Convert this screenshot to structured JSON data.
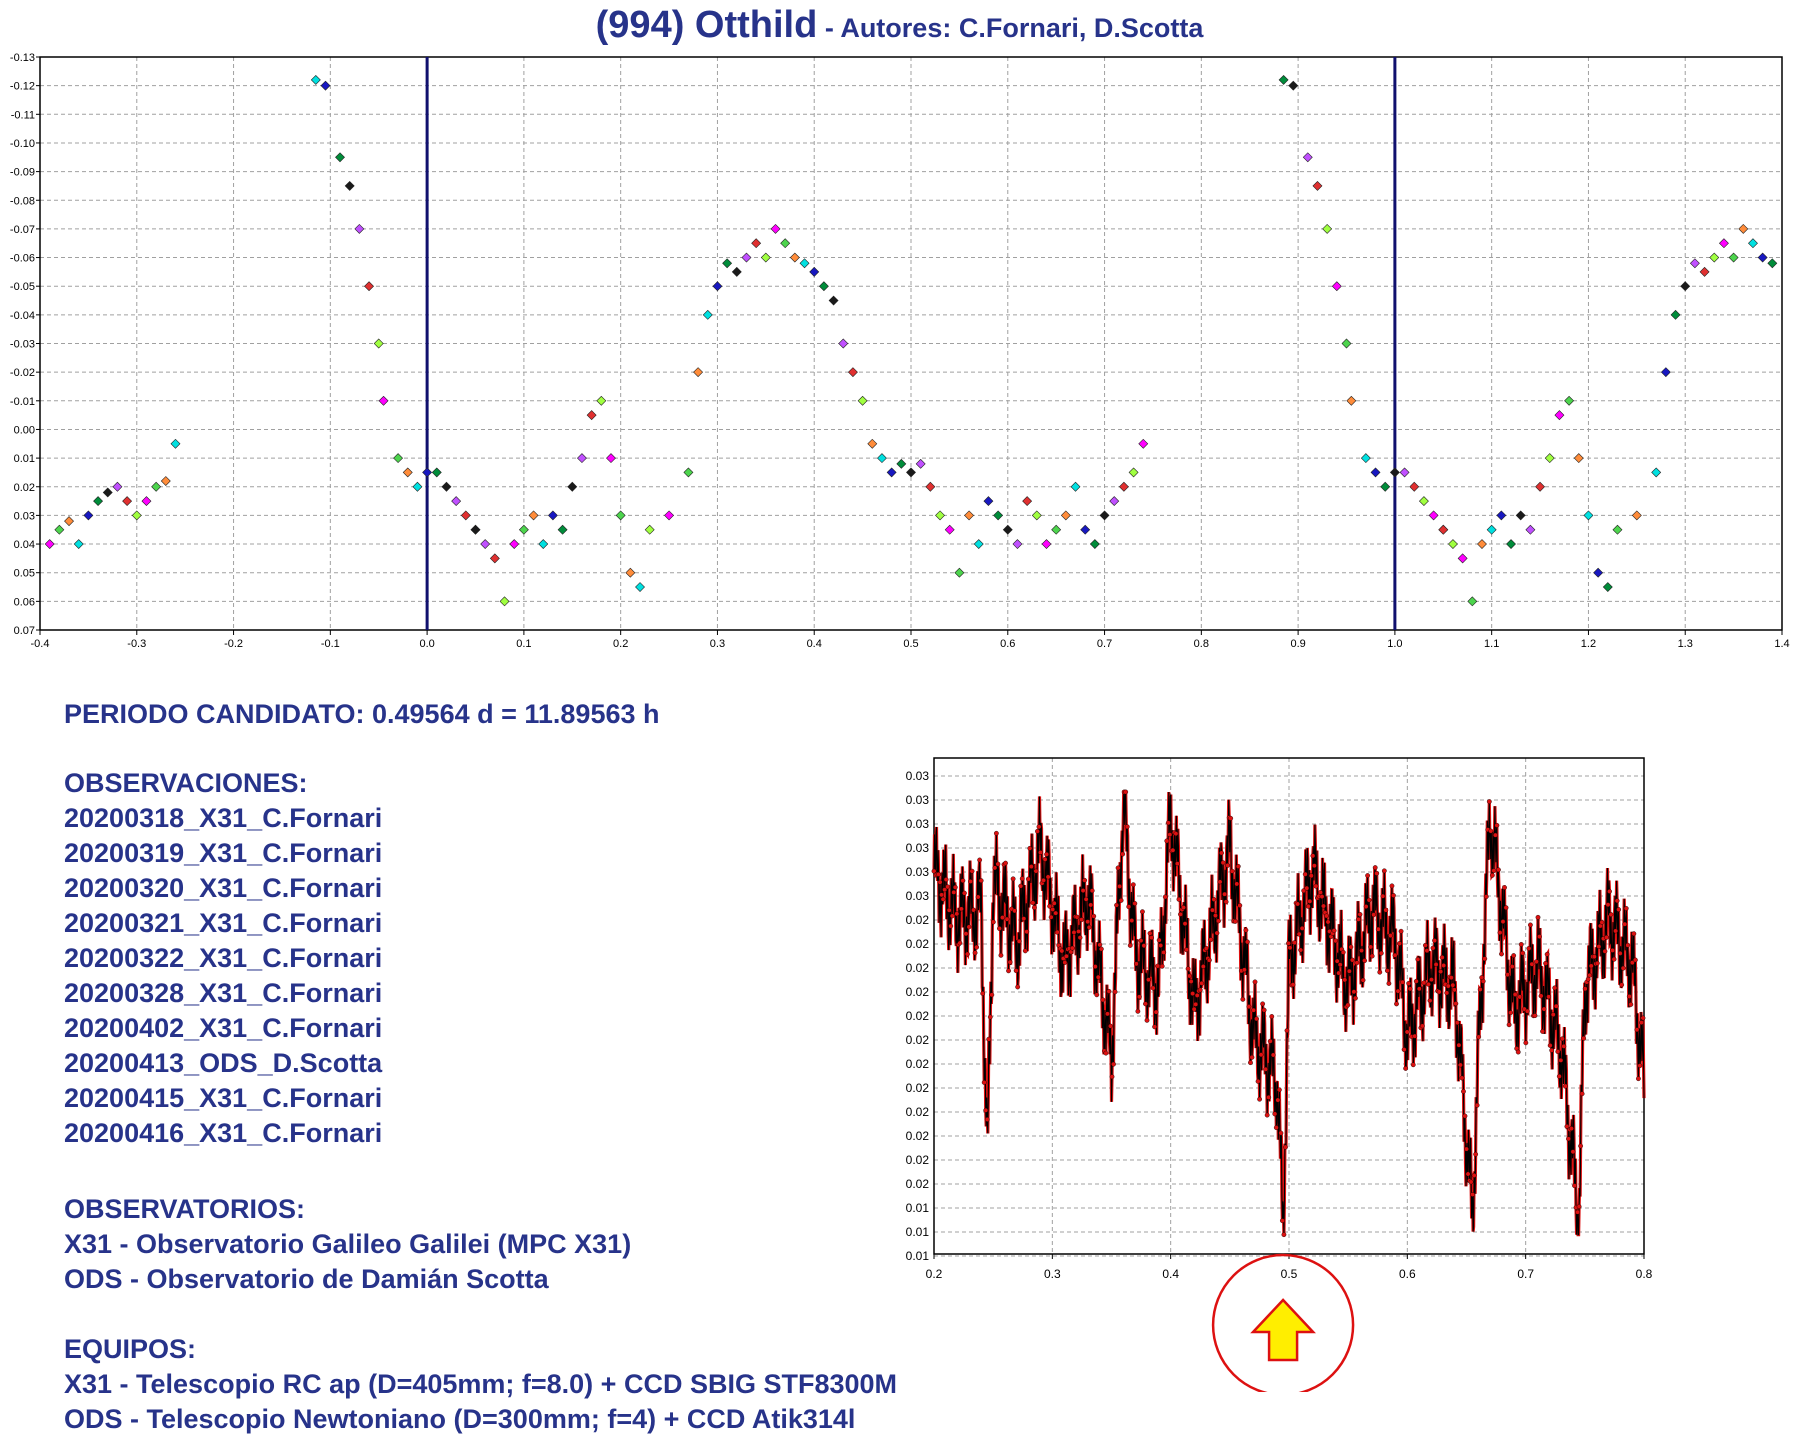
{
  "title": {
    "object": "(994) Otthild",
    "authors": " - Autores: C.Fornari, D.Scotta"
  },
  "period": "PERIODO CANDIDATO: 0.49564 d = 11.89563 h",
  "observaciones": {
    "heading": "OBSERVACIONES:",
    "items": [
      "20200318_X31_C.Fornari",
      "20200319_X31_C.Fornari",
      "20200320_X31_C.Fornari",
      "20200321_X31_C.Fornari",
      "20200322_X31_C.Fornari",
      "20200328_X31_C.Fornari",
      "20200402_X31_C.Fornari",
      "20200413_ODS_D.Scotta",
      "20200415_X31_C.Fornari",
      "20200416_X31_C.Fornari"
    ]
  },
  "observatorios": {
    "heading": "OBSERVATORIOS:",
    "items": [
      "X31 - Observatorio Galileo Galilei (MPC X31)",
      "ODS - Observatorio de Damián Scotta"
    ]
  },
  "equipos": {
    "heading": "EQUIPOS:",
    "items": [
      "X31 - Telescopio RC ap (D=405mm; f=8.0) + CCD SBIG STF8300M",
      "ODS - Telescopio Newtoniano (D=300mm; f=4) + CCD Atik314l"
    ]
  },
  "chart_data": [
    {
      "type": "scatter",
      "title": "",
      "xlabel": "",
      "ylabel": "",
      "xlim": [
        -0.4,
        1.4
      ],
      "ylim": [
        -0.13,
        0.07
      ],
      "y_inverted": true,
      "grid": true,
      "x_ticks": [
        -0.4,
        -0.3,
        -0.2,
        -0.1,
        0.0,
        0.1,
        0.2,
        0.3,
        0.4,
        0.5,
        0.6,
        0.7,
        0.8,
        0.9,
        1.0,
        1.1,
        1.2,
        1.3,
        1.4
      ],
      "x_tick_labels": [
        "-0.4",
        "-0.3",
        "-0.2",
        "-0.1",
        "0.0",
        "0.1",
        "0.2",
        "0.3",
        "0.4",
        "0.5",
        "0.6",
        "0.7",
        "0.8",
        "0.9",
        "1.0",
        "1.1",
        "1.2",
        "1.3",
        "1.4"
      ],
      "y_ticks": [
        -0.13,
        -0.12,
        -0.11,
        -0.1,
        -0.09,
        -0.08,
        -0.07,
        -0.06,
        -0.05,
        -0.04,
        -0.03,
        -0.02,
        -0.01,
        0.0,
        0.01,
        0.02,
        0.03,
        0.04,
        0.05,
        0.06,
        0.07
      ],
      "y_tick_labels": [
        "-0.13",
        "-0.12",
        "-0.11",
        "-0.10",
        "-0.09",
        "-0.08",
        "-0.07",
        "-0.06",
        "-0.05",
        "-0.04",
        "-0.03",
        "-0.02",
        "-0.01",
        "0.00",
        "0.01",
        "0.02",
        "0.03",
        "0.04",
        "0.05",
        "0.06",
        "0.07"
      ],
      "vertical_lines": [
        0.0,
        1.0
      ],
      "vertical_line_color": "#10106e",
      "series_colors": [
        "#ff00ff",
        "#4dd44d",
        "#ff8c3a",
        "#00e0e0",
        "#1818c0",
        "#008c3a",
        "#1a1a1a",
        "#c050ff",
        "#e03030",
        "#a0ff40"
      ],
      "series": [
        {
          "x": [
            -0.39,
            -0.38,
            -0.37,
            -0.36,
            -0.35,
            -0.34,
            -0.33,
            -0.32,
            -0.31,
            -0.3,
            -0.29,
            -0.28,
            -0.27,
            -0.26
          ],
          "y": [
            0.04,
            0.035,
            0.032,
            0.04,
            0.03,
            0.025,
            0.022,
            0.02,
            0.025,
            0.03,
            0.025,
            0.02,
            0.018,
            0.005
          ]
        },
        {
          "x": [
            -0.115,
            -0.105,
            -0.09,
            -0.08,
            -0.07,
            -0.06,
            -0.05,
            -0.045,
            -0.03,
            -0.02,
            -0.01,
            0.0,
            0.01,
            0.02,
            0.03,
            0.04,
            0.05
          ],
          "y": [
            -0.122,
            -0.12,
            -0.095,
            -0.085,
            -0.07,
            -0.05,
            -0.03,
            -0.01,
            0.01,
            0.015,
            0.02,
            0.015,
            0.015,
            0.02,
            0.025,
            0.03,
            0.035
          ]
        },
        {
          "x": [
            0.05,
            0.06,
            0.07,
            0.08,
            0.09,
            0.1,
            0.11,
            0.12,
            0.13,
            0.14,
            0.15,
            0.16,
            0.17,
            0.18,
            0.19,
            0.2,
            0.21,
            0.22
          ],
          "y": [
            0.035,
            0.04,
            0.045,
            0.06,
            0.04,
            0.035,
            0.03,
            0.04,
            0.03,
            0.035,
            0.02,
            0.01,
            -0.005,
            -0.01,
            0.01,
            0.03,
            0.05,
            0.055
          ]
        },
        {
          "x": [
            0.23,
            0.25,
            0.27,
            0.28,
            0.29,
            0.3,
            0.31,
            0.32,
            0.33,
            0.34,
            0.35,
            0.36,
            0.37,
            0.38,
            0.39,
            0.4,
            0.41,
            0.42,
            0.43,
            0.44,
            0.45
          ],
          "y": [
            0.035,
            0.03,
            0.015,
            -0.02,
            -0.04,
            -0.05,
            -0.058,
            -0.055,
            -0.06,
            -0.065,
            -0.06,
            -0.07,
            -0.065,
            -0.06,
            -0.058,
            -0.055,
            -0.05,
            -0.045,
            -0.03,
            -0.02,
            -0.01
          ]
        },
        {
          "x": [
            0.46,
            0.47,
            0.48,
            0.49,
            0.5,
            0.51,
            0.52,
            0.53,
            0.54,
            0.55,
            0.56,
            0.57,
            0.58,
            0.59,
            0.6,
            0.61,
            0.62,
            0.63,
            0.64,
            0.65,
            0.66,
            0.67,
            0.68,
            0.69,
            0.7,
            0.71,
            0.72,
            0.73,
            0.74
          ],
          "y": [
            0.005,
            0.01,
            0.015,
            0.012,
            0.015,
            0.012,
            0.02,
            0.03,
            0.035,
            0.05,
            0.03,
            0.04,
            0.025,
            0.03,
            0.035,
            0.04,
            0.025,
            0.03,
            0.04,
            0.035,
            0.03,
            0.02,
            0.035,
            0.04,
            0.03,
            0.025,
            0.02,
            0.015,
            0.005
          ]
        },
        {
          "x": [
            0.885,
            0.895,
            0.91,
            0.92,
            0.93,
            0.94,
            0.95,
            0.955,
            0.97,
            0.98,
            0.99,
            1.0,
            1.01,
            1.02,
            1.03,
            1.04,
            1.05
          ],
          "y": [
            -0.122,
            -0.12,
            -0.095,
            -0.085,
            -0.07,
            -0.05,
            -0.03,
            -0.01,
            0.01,
            0.015,
            0.02,
            0.015,
            0.015,
            0.02,
            0.025,
            0.03,
            0.035
          ]
        },
        {
          "x": [
            1.05,
            1.06,
            1.07,
            1.08,
            1.09,
            1.1,
            1.11,
            1.12,
            1.13,
            1.14,
            1.15,
            1.16,
            1.17,
            1.18,
            1.19,
            1.2,
            1.21,
            1.22
          ],
          "y": [
            0.035,
            0.04,
            0.045,
            0.06,
            0.04,
            0.035,
            0.03,
            0.04,
            0.03,
            0.035,
            0.02,
            0.01,
            -0.005,
            -0.01,
            0.01,
            0.03,
            0.05,
            0.055
          ]
        },
        {
          "x": [
            1.23,
            1.25,
            1.27,
            1.28,
            1.29,
            1.3,
            1.31,
            1.32,
            1.33,
            1.34,
            1.35,
            1.36,
            1.37,
            1.38,
            1.39
          ],
          "y": [
            0.035,
            0.03,
            0.015,
            -0.02,
            -0.04,
            -0.05,
            -0.058,
            -0.055,
            -0.06,
            -0.065,
            -0.06,
            -0.07,
            -0.065,
            -0.06,
            -0.058
          ]
        }
      ]
    },
    {
      "type": "line",
      "title": "",
      "xlabel": "",
      "ylabel": "",
      "xlim": [
        0.2,
        0.8
      ],
      "grid": true,
      "line_color": "#000000",
      "marker_color": "#dd1111",
      "x_ticks": [
        0.2,
        0.3,
        0.4,
        0.5,
        0.6,
        0.7,
        0.8
      ],
      "x_tick_labels": [
        "0.2",
        "0.3",
        "0.4",
        "0.5",
        "0.6",
        "0.7",
        "0.8"
      ],
      "y_tick_labels": [
        "0.03",
        "0.03",
        "0.03",
        "0.03",
        "0.03",
        "0.03",
        "0.02",
        "0.02",
        "0.02",
        "0.02",
        "0.02",
        "0.02",
        "0.02",
        "0.02",
        "0.02",
        "0.02",
        "0.02",
        "0.02",
        "0.01",
        "0.01",
        "0.01"
      ],
      "x": [
        0.2,
        0.22,
        0.24,
        0.245,
        0.25,
        0.27,
        0.29,
        0.31,
        0.33,
        0.35,
        0.36,
        0.37,
        0.39,
        0.4,
        0.42,
        0.45,
        0.47,
        0.49,
        0.495,
        0.5,
        0.52,
        0.55,
        0.57,
        0.59,
        0.6,
        0.62,
        0.64,
        0.655,
        0.66,
        0.67,
        0.69,
        0.71,
        0.73,
        0.745,
        0.75,
        0.77,
        0.79,
        0.8
      ],
      "y": [
        0.8,
        0.7,
        0.72,
        0.18,
        0.78,
        0.65,
        0.85,
        0.6,
        0.75,
        0.4,
        0.95,
        0.62,
        0.55,
        0.92,
        0.5,
        0.85,
        0.45,
        0.35,
        0.04,
        0.6,
        0.8,
        0.55,
        0.72,
        0.65,
        0.45,
        0.6,
        0.55,
        0.06,
        0.4,
        0.92,
        0.5,
        0.6,
        0.42,
        0.05,
        0.55,
        0.7,
        0.6,
        0.35
      ],
      "annotation": {
        "x": 0.495,
        "marker": "circle-arrow",
        "circle_color": "#dd1111",
        "arrow_color": "#ffee00"
      }
    }
  ]
}
